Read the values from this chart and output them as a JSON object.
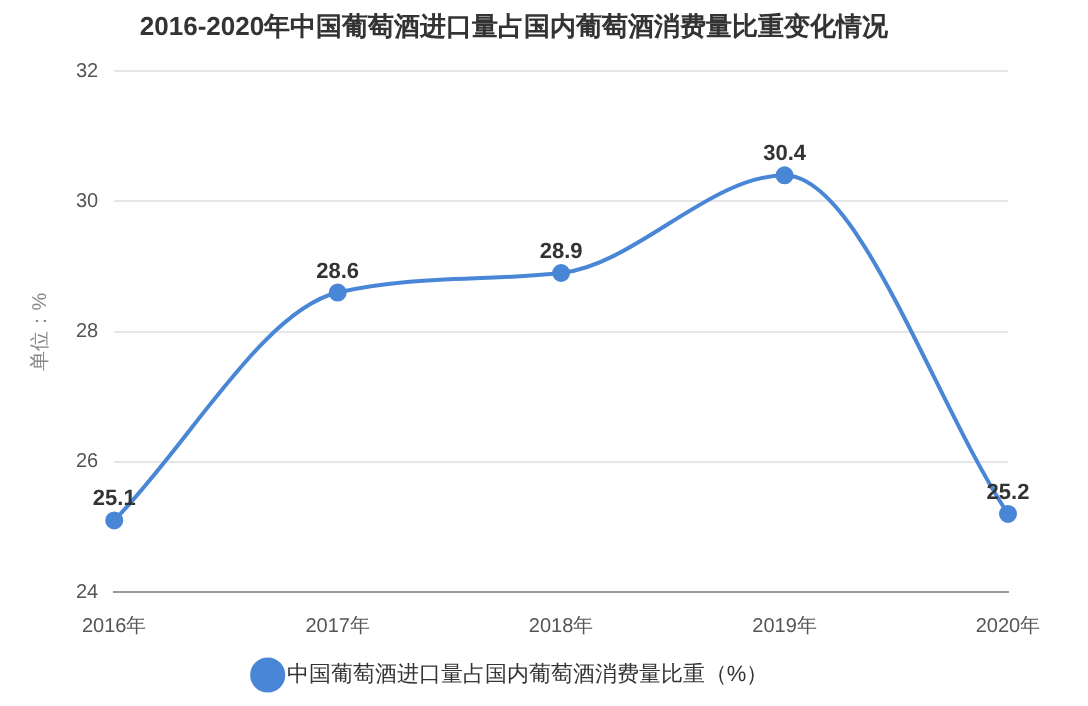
{
  "chart_data": {
    "type": "line",
    "title": "2016-2020年中国葡萄酒进口量占国内葡萄酒消费量比重变化情况",
    "ylabel": "单位：%",
    "categories": [
      "2016年",
      "2017年",
      "2018年",
      "2019年",
      "2020年"
    ],
    "series": [
      {
        "name": "中国葡萄酒进口量占国内葡萄酒消费量比重（%）",
        "color": "#4a86d6",
        "values": [
          25.1,
          28.6,
          28.9,
          30.4,
          25.2
        ]
      }
    ],
    "ylim": [
      24,
      32
    ],
    "yticks": [
      24,
      26,
      28,
      30,
      32
    ],
    "grid": "y",
    "legend": "bottom",
    "marker": "circle",
    "line_style": "solid",
    "data_labels": true
  }
}
